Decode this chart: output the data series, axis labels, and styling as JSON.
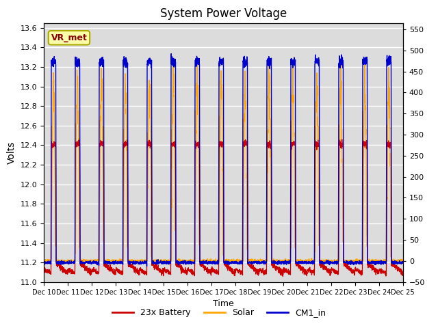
{
  "title": "System Power Voltage",
  "xlabel": "Time",
  "ylabel": "Volts",
  "ylim_left": [
    11.0,
    13.65
  ],
  "ylim_right": [
    -50,
    565
  ],
  "yticks_left": [
    11.0,
    11.2,
    11.4,
    11.6,
    11.8,
    12.0,
    12.2,
    12.4,
    12.6,
    12.8,
    13.0,
    13.2,
    13.4,
    13.6
  ],
  "yticks_right": [
    -50,
    0,
    50,
    100,
    150,
    200,
    250,
    300,
    350,
    400,
    450,
    500,
    550
  ],
  "xtick_labels": [
    "Dec 10",
    "Dec 11",
    "Dec 12",
    "Dec 13",
    "Dec 14",
    "Dec 15",
    "Dec 16",
    "Dec 17",
    "Dec 18",
    "Dec 19",
    "Dec 20",
    "Dec 21",
    "Dec 22",
    "Dec 23",
    "Dec 24",
    "Dec 25"
  ],
  "n_days": 15,
  "annotation_text": "VR_met",
  "annotation_box_facecolor": "#FFFFAA",
  "annotation_box_edgecolor": "#AAAA00",
  "annotation_text_color": "#880000",
  "battery_color": "#CC0000",
  "solar_color": "#FFA500",
  "cm1_color": "#0000CC",
  "plot_bg_color": "#DCDCDC",
  "grid_color": "#FFFFFF",
  "legend_labels": [
    "23x Battery",
    "Solar",
    "CM1_in"
  ],
  "solar_scale_min": -50,
  "solar_scale_max": 565,
  "volt_scale_min": 11.0,
  "volt_scale_max": 13.65
}
